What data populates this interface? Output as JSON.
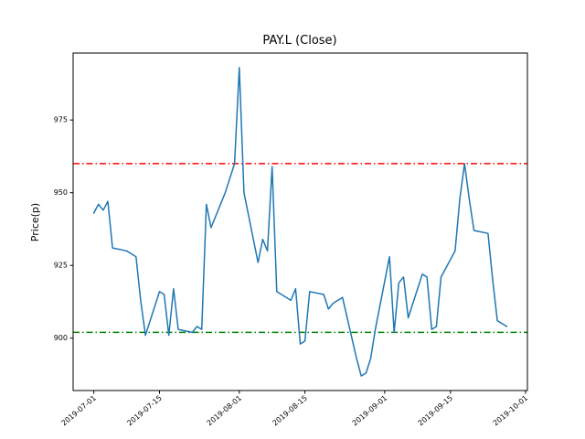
{
  "figure": {
    "background": "#ffffff"
  },
  "chart_data": {
    "type": "line",
    "title": "PAY.L (Close)",
    "xlabel": "",
    "ylabel": "Price(p)",
    "color": "#1f77b4",
    "grid": false,
    "legend": "none",
    "ylim": [
      882,
      998
    ],
    "yticks": [
      900,
      925,
      950,
      975
    ],
    "xticks": [
      "2019-07-01",
      "2019-07-15",
      "2019-08-01",
      "2019-08-15",
      "2019-09-01",
      "2019-09-15",
      "2019-10-01"
    ],
    "x": [
      "2019-07-01",
      "2019-07-02",
      "2019-07-03",
      "2019-07-04",
      "2019-07-05",
      "2019-07-08",
      "2019-07-09",
      "2019-07-10",
      "2019-07-11",
      "2019-07-12",
      "2019-07-15",
      "2019-07-16",
      "2019-07-17",
      "2019-07-18",
      "2019-07-19",
      "2019-07-22",
      "2019-07-23",
      "2019-07-24",
      "2019-07-25",
      "2019-07-26",
      "2019-07-29",
      "2019-07-30",
      "2019-07-31",
      "2019-08-01",
      "2019-08-02",
      "2019-08-05",
      "2019-08-06",
      "2019-08-07",
      "2019-08-08",
      "2019-08-09",
      "2019-08-12",
      "2019-08-13",
      "2019-08-14",
      "2019-08-15",
      "2019-08-16",
      "2019-08-19",
      "2019-08-20",
      "2019-08-21",
      "2019-08-22",
      "2019-08-23",
      "2019-08-26",
      "2019-08-27",
      "2019-08-28",
      "2019-08-29",
      "2019-08-30",
      "2019-09-02",
      "2019-09-03",
      "2019-09-04",
      "2019-09-05",
      "2019-09-06",
      "2019-09-09",
      "2019-09-10",
      "2019-09-11",
      "2019-09-12",
      "2019-09-13",
      "2019-09-16",
      "2019-09-17",
      "2019-09-18",
      "2019-09-19",
      "2019-09-20",
      "2019-09-23",
      "2019-09-24",
      "2019-09-25",
      "2019-09-26",
      "2019-09-27"
    ],
    "values": [
      943,
      946,
      944,
      947,
      931,
      930,
      929,
      928,
      913,
      901,
      916,
      915,
      901,
      917,
      903,
      902,
      904,
      903,
      946,
      938,
      950,
      955,
      960,
      993,
      950,
      926,
      934,
      930,
      959,
      916,
      913,
      917,
      898,
      899,
      916,
      915,
      910,
      912,
      913,
      914,
      893,
      887,
      888,
      893,
      903,
      928,
      902,
      919,
      921,
      907,
      922,
      921,
      903,
      904,
      921,
      930,
      948,
      960,
      948,
      937,
      936,
      920,
      906,
      905,
      904
    ],
    "hlines": [
      {
        "name": "upper-threshold",
        "y": 960,
        "color": "#ff0000",
        "style": "dashdot"
      },
      {
        "name": "lower-threshold",
        "y": 902,
        "color": "#008000",
        "style": "dashdot"
      }
    ]
  }
}
